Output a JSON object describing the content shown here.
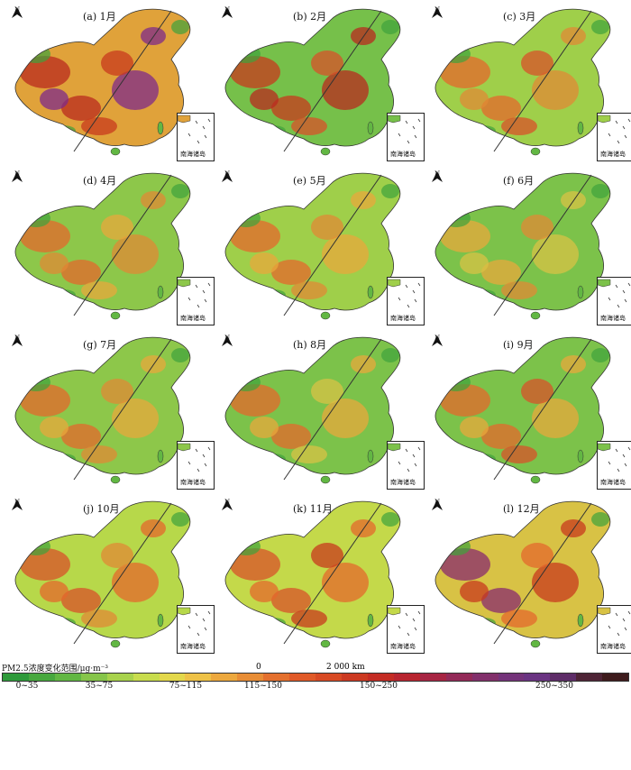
{
  "panels": [
    {
      "label": "(a) 1月",
      "hot": [
        "#b92a1f",
        "#7f2a8a",
        "#c8391e"
      ],
      "base": "#e0a23a"
    },
    {
      "label": "(b) 2月",
      "hot": [
        "#c8391e",
        "#b92a1f",
        "#d8522a"
      ],
      "base": "#76c04a"
    },
    {
      "label": "(c) 3月",
      "hot": [
        "#e4682c",
        "#e08a36",
        "#d8522a"
      ],
      "base": "#9fcf4a"
    },
    {
      "label": "(d) 4月",
      "hot": [
        "#e4682c",
        "#e08a36",
        "#e8a83c"
      ],
      "base": "#8dc74a"
    },
    {
      "label": "(e) 5月",
      "hot": [
        "#e4682c",
        "#e8a83c",
        "#e08a36"
      ],
      "base": "#9fcf4a"
    },
    {
      "label": "(f) 6月",
      "hot": [
        "#e8a83c",
        "#d8c245",
        "#e08a36"
      ],
      "base": "#7cc24a"
    },
    {
      "label": "(g) 7月",
      "hot": [
        "#e4682c",
        "#e8a83c",
        "#e08a36"
      ],
      "base": "#8dc74a"
    },
    {
      "label": "(h) 8月",
      "hot": [
        "#e4682c",
        "#e8a83c",
        "#d8c245"
      ],
      "base": "#7cc24a"
    },
    {
      "label": "(i) 9月",
      "hot": [
        "#e4682c",
        "#e8a83c",
        "#d8522a"
      ],
      "base": "#7cc24a"
    },
    {
      "label": "(j) 10月",
      "hot": [
        "#d8522a",
        "#e4682c",
        "#e08a36"
      ],
      "base": "#b7d84a"
    },
    {
      "label": "(k) 11月",
      "hot": [
        "#d8522a",
        "#e4682c",
        "#c8391e"
      ],
      "base": "#c4d94a"
    },
    {
      "label": "(l) 12月",
      "hot": [
        "#8a2a6e",
        "#c8391e",
        "#e4682c"
      ],
      "base": "#d8c245"
    }
  ],
  "north_label": "N",
  "inset_label": "南海诸岛",
  "scale": {
    "start": "0",
    "end": "2 000 km"
  },
  "legend": {
    "title": "PM2.5浓度变化范围/μg·m⁻³",
    "colors": [
      "#2e9a3a",
      "#47a83e",
      "#62b743",
      "#86c54a",
      "#a8d24c",
      "#c8dc4d",
      "#e3d84b",
      "#eec247",
      "#eca83e",
      "#e88d36",
      "#e4702e",
      "#e05a28",
      "#d84a24",
      "#cc3a22",
      "#c42c24",
      "#b82530",
      "#a72543",
      "#932a58",
      "#82306b",
      "#74337a",
      "#6a3482",
      "#5e2d68",
      "#4e2436",
      "#3e1b1c"
    ],
    "ticks": [
      "0~35",
      "35~75",
      "75~115",
      "115~150",
      "150~250",
      "250~350"
    ]
  }
}
